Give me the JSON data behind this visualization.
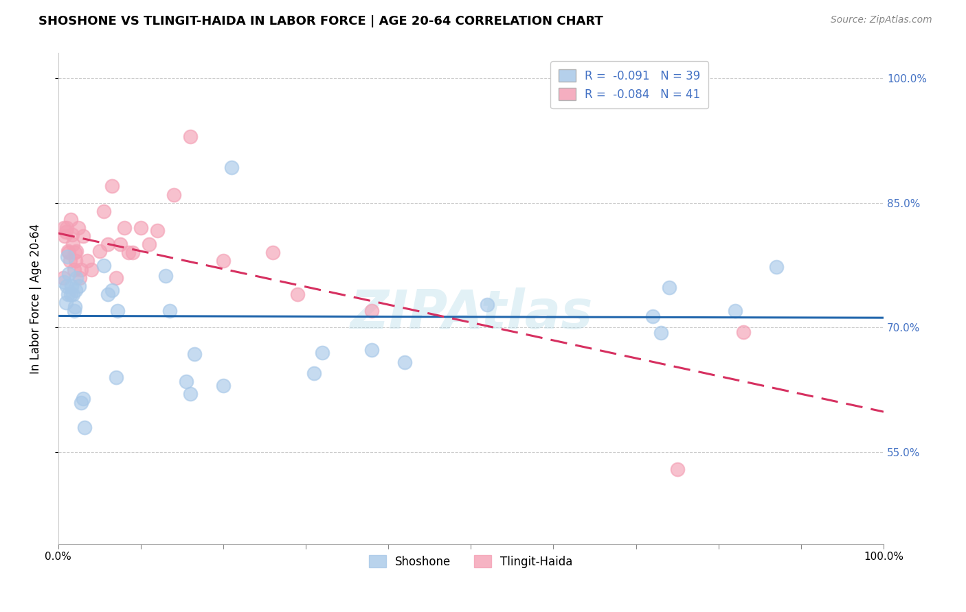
{
  "title": "SHOSHONE VS TLINGIT-HAIDA IN LABOR FORCE | AGE 20-64 CORRELATION CHART",
  "source": "Source: ZipAtlas.com",
  "ylabel": "In Labor Force | Age 20-64",
  "xlim": [
    0.0,
    1.0
  ],
  "ylim": [
    0.44,
    1.03
  ],
  "yticks": [
    0.55,
    0.7,
    0.85,
    1.0
  ],
  "ytick_labels": [
    "55.0%",
    "70.0%",
    "85.0%",
    "100.0%"
  ],
  "xticks": [
    0.0,
    0.1,
    0.2,
    0.3,
    0.4,
    0.5,
    0.6,
    0.7,
    0.8,
    0.9,
    1.0
  ],
  "xtick_labels": [
    "0.0%",
    "",
    "",
    "",
    "",
    "",
    "",
    "",
    "",
    "",
    "100.0%"
  ],
  "shoshone_color": "#a8c8e8",
  "tlingit_color": "#f4a0b5",
  "shoshone_line_color": "#2166ac",
  "tlingit_line_color": "#d63060",
  "shoshone_R": -0.091,
  "shoshone_N": 39,
  "tlingit_R": -0.084,
  "tlingit_N": 41,
  "background_color": "#ffffff",
  "grid_color": "#cccccc",
  "right_label_color": "#4472c4",
  "watermark": "ZIPAtlas",
  "shoshone_x": [
    0.007,
    0.009,
    0.01,
    0.011,
    0.012,
    0.013,
    0.015,
    0.016,
    0.018,
    0.019,
    0.02,
    0.021,
    0.022,
    0.025,
    0.028,
    0.03,
    0.032,
    0.055,
    0.06,
    0.065,
    0.07,
    0.072,
    0.13,
    0.135,
    0.155,
    0.16,
    0.165,
    0.2,
    0.21,
    0.31,
    0.32,
    0.38,
    0.42,
    0.52,
    0.72,
    0.73,
    0.74,
    0.82,
    0.87
  ],
  "shoshone_y": [
    0.755,
    0.73,
    0.75,
    0.785,
    0.74,
    0.765,
    0.74,
    0.75,
    0.74,
    0.72,
    0.725,
    0.745,
    0.76,
    0.75,
    0.61,
    0.615,
    0.58,
    0.775,
    0.74,
    0.745,
    0.64,
    0.72,
    0.762,
    0.72,
    0.635,
    0.62,
    0.668,
    0.63,
    0.893,
    0.645,
    0.67,
    0.673,
    0.658,
    0.728,
    0.714,
    0.694,
    0.748,
    0.72,
    0.773
  ],
  "tlingit_x": [
    0.006,
    0.007,
    0.008,
    0.009,
    0.01,
    0.012,
    0.013,
    0.014,
    0.015,
    0.017,
    0.018,
    0.019,
    0.02,
    0.021,
    0.022,
    0.024,
    0.026,
    0.028,
    0.03,
    0.035,
    0.04,
    0.05,
    0.055,
    0.06,
    0.065,
    0.07,
    0.075,
    0.08,
    0.085,
    0.09,
    0.1,
    0.11,
    0.12,
    0.14,
    0.16,
    0.2,
    0.26,
    0.29,
    0.38,
    0.75,
    0.83
  ],
  "tlingit_y": [
    0.76,
    0.82,
    0.81,
    0.815,
    0.82,
    0.792,
    0.79,
    0.78,
    0.83,
    0.812,
    0.8,
    0.77,
    0.79,
    0.78,
    0.792,
    0.82,
    0.76,
    0.77,
    0.81,
    0.78,
    0.77,
    0.792,
    0.84,
    0.8,
    0.87,
    0.76,
    0.8,
    0.82,
    0.79,
    0.79,
    0.82,
    0.8,
    0.817,
    0.86,
    0.93,
    0.78,
    0.79,
    0.74,
    0.72,
    0.53,
    0.695
  ]
}
